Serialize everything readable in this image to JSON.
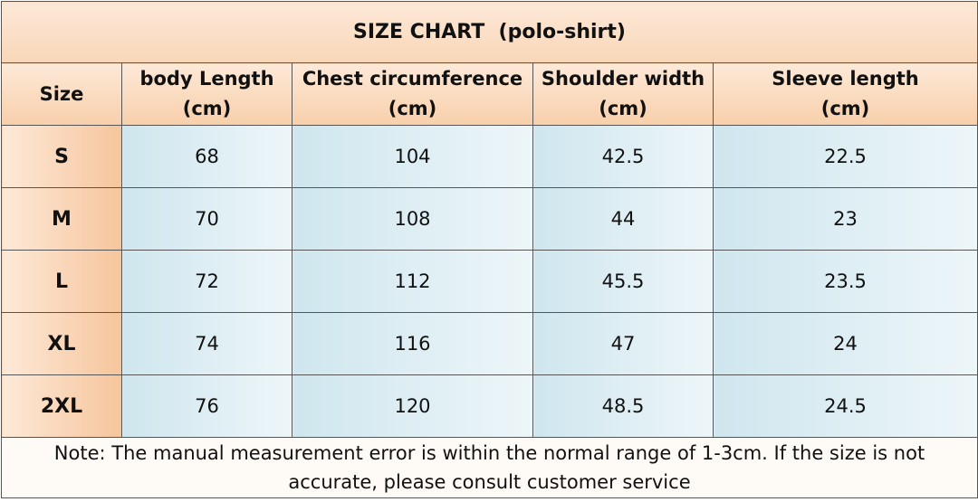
{
  "title": "SIZE CHART  (polo-shirt)",
  "table": {
    "header": [
      {
        "name": "Size"
      },
      {
        "name": "body Length",
        "unit": "(cm)"
      },
      {
        "name": "Chest circumference",
        "unit": "(cm)"
      },
      {
        "name": "Shoulder width",
        "unit": "(cm)"
      },
      {
        "name": "Sleeve length",
        "unit": "(cm)"
      }
    ],
    "rows": [
      [
        "S",
        68,
        104,
        42.5,
        22.5
      ],
      [
        "M",
        70,
        108,
        44,
        23
      ],
      [
        "L",
        72,
        112,
        45.5,
        23.5
      ],
      [
        "XL",
        74,
        116,
        47,
        24
      ],
      [
        "2XL",
        76,
        120,
        48.5,
        24.5
      ]
    ]
  },
  "note": "Note: The manual measurement error is within the normal range of 1-3cm. If the size is not accurate, please consult customer service"
}
